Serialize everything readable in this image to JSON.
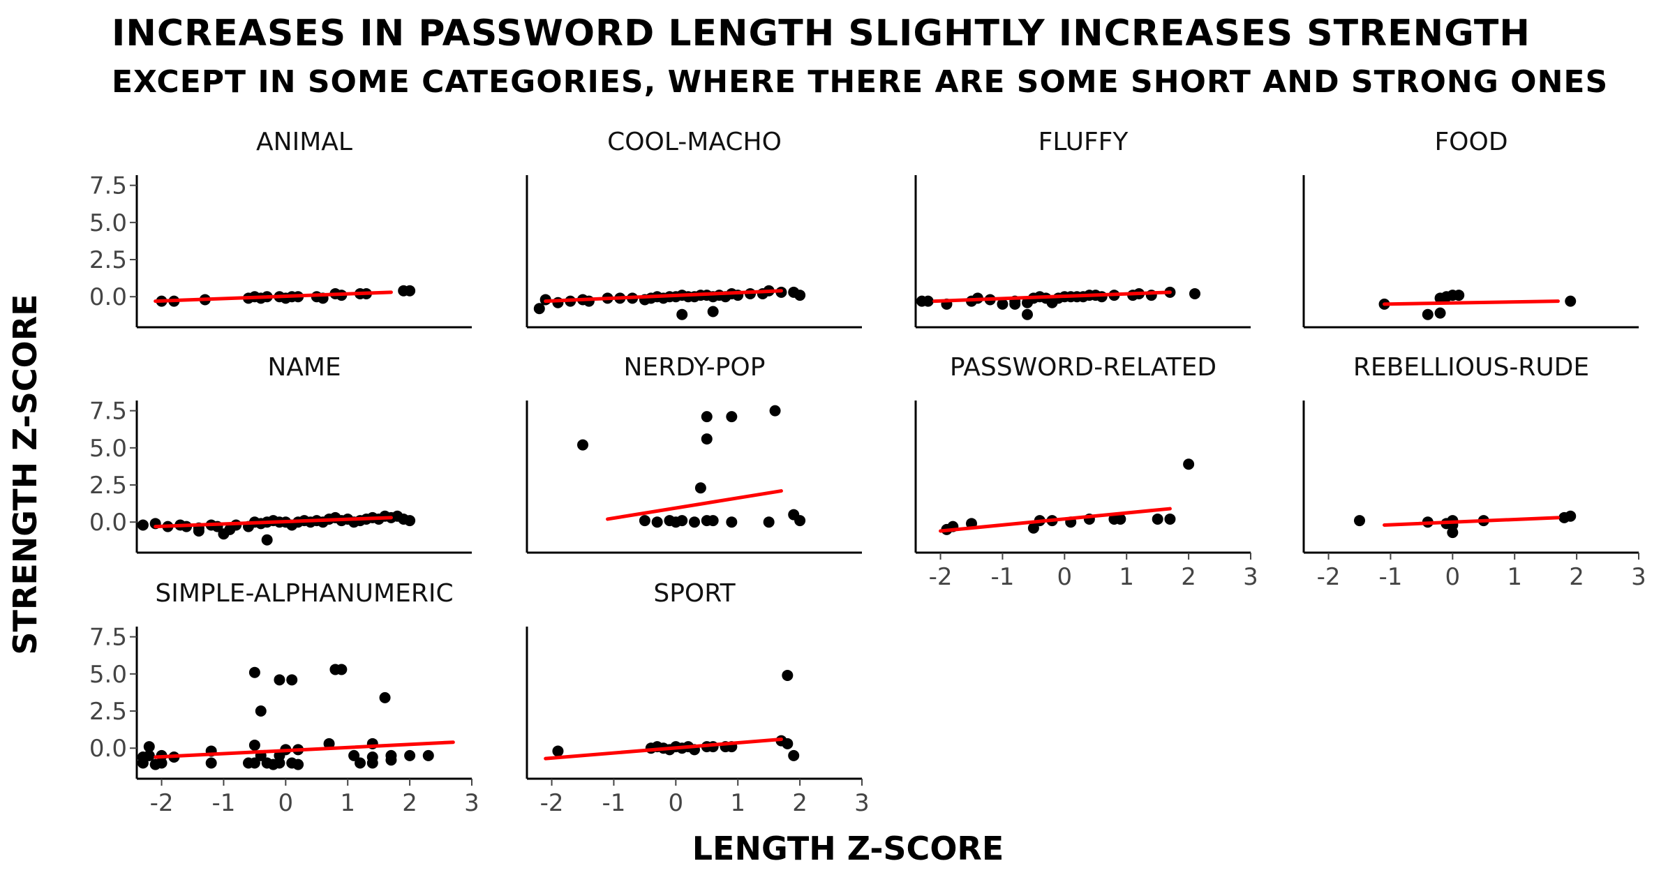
{
  "chart_data": {
    "type": "scatter",
    "title": "INCREASES IN PASSWORD LENGTH SLIGHTLY INCREASES STRENGTH",
    "subtitle": "EXCEPT IN SOME CATEGORIES, WHERE THERE ARE SOME SHORT AND STRONG ONES",
    "xlabel": "LENGTH Z-SCORE",
    "ylabel": "STRENGTH Z-SCORE",
    "xlim": [
      -2.4,
      3.0
    ],
    "ylim": [
      -1.4,
      8.0
    ],
    "x_ticks": [
      "-2",
      "-1",
      "0",
      "1",
      "2",
      "3"
    ],
    "x_tick_values": [
      -2,
      -1,
      0,
      1,
      2,
      3
    ],
    "y_ticks": [
      "0.0",
      "2.5",
      "5.0",
      "7.5"
    ],
    "y_tick_values": [
      0,
      2.5,
      5,
      7.5
    ],
    "point_color": "#000000",
    "fit_color": "#ff0000",
    "panels": [
      {
        "name": "ANIMAL",
        "points": [
          [
            -2.0,
            -0.3
          ],
          [
            -1.8,
            -0.3
          ],
          [
            -1.3,
            -0.2
          ],
          [
            -0.6,
            -0.1
          ],
          [
            -0.5,
            0.0
          ],
          [
            -0.4,
            -0.1
          ],
          [
            -0.3,
            0.0
          ],
          [
            -0.1,
            0.0
          ],
          [
            0.0,
            -0.1
          ],
          [
            0.1,
            0.0
          ],
          [
            0.2,
            0.0
          ],
          [
            0.5,
            0.0
          ],
          [
            0.6,
            -0.1
          ],
          [
            0.8,
            0.2
          ],
          [
            0.9,
            0.1
          ],
          [
            1.2,
            0.2
          ],
          [
            1.3,
            0.2
          ],
          [
            1.9,
            0.4
          ],
          [
            2.0,
            0.4
          ]
        ],
        "fit": [
          [
            -2.1,
            -0.3
          ],
          [
            1.7,
            0.3
          ]
        ]
      },
      {
        "name": "COOL-MACHO",
        "points": [
          [
            -2.2,
            -0.8
          ],
          [
            -2.1,
            -0.2
          ],
          [
            -1.9,
            -0.4
          ],
          [
            -1.7,
            -0.3
          ],
          [
            -1.5,
            -0.2
          ],
          [
            -1.4,
            -0.3
          ],
          [
            -1.1,
            -0.1
          ],
          [
            -0.9,
            -0.1
          ],
          [
            -0.7,
            -0.1
          ],
          [
            -0.5,
            -0.2
          ],
          [
            -0.4,
            -0.1
          ],
          [
            -0.3,
            0.0
          ],
          [
            -0.2,
            -0.1
          ],
          [
            -0.1,
            0.0
          ],
          [
            0.0,
            0.0
          ],
          [
            0.1,
            0.1
          ],
          [
            0.2,
            0.0
          ],
          [
            0.3,
            0.0
          ],
          [
            0.4,
            0.1
          ],
          [
            0.5,
            0.1
          ],
          [
            0.6,
            0.0
          ],
          [
            0.7,
            0.1
          ],
          [
            0.8,
            0.0
          ],
          [
            0.9,
            0.2
          ],
          [
            1.0,
            0.1
          ],
          [
            1.2,
            0.2
          ],
          [
            1.4,
            0.2
          ],
          [
            1.5,
            0.4
          ],
          [
            1.7,
            0.3
          ],
          [
            1.9,
            0.3
          ],
          [
            2.0,
            0.1
          ],
          [
            0.1,
            -1.2
          ],
          [
            0.6,
            -1.0
          ]
        ],
        "fit": [
          [
            -2.1,
            -0.3
          ],
          [
            1.7,
            0.4
          ]
        ]
      },
      {
        "name": "FLUFFY",
        "points": [
          [
            -2.3,
            -0.3
          ],
          [
            -2.2,
            -0.3
          ],
          [
            -1.9,
            -0.5
          ],
          [
            -1.5,
            -0.3
          ],
          [
            -1.4,
            -0.1
          ],
          [
            -1.2,
            -0.2
          ],
          [
            -1.0,
            -0.5
          ],
          [
            -0.8,
            -0.3
          ],
          [
            -0.8,
            -0.5
          ],
          [
            -0.6,
            -0.4
          ],
          [
            -0.5,
            -0.1
          ],
          [
            -0.4,
            0.0
          ],
          [
            -0.3,
            -0.1
          ],
          [
            -0.2,
            -0.4
          ],
          [
            -0.1,
            -0.1
          ],
          [
            0.0,
            0.0
          ],
          [
            0.1,
            0.0
          ],
          [
            0.2,
            0.0
          ],
          [
            0.3,
            0.0
          ],
          [
            0.4,
            0.1
          ],
          [
            0.5,
            0.1
          ],
          [
            0.6,
            0.0
          ],
          [
            0.8,
            0.1
          ],
          [
            1.1,
            0.1
          ],
          [
            1.2,
            0.2
          ],
          [
            1.4,
            0.1
          ],
          [
            1.7,
            0.3
          ],
          [
            2.1,
            0.2
          ],
          [
            -0.6,
            -1.2
          ]
        ],
        "fit": [
          [
            -2.1,
            -0.3
          ],
          [
            1.7,
            0.3
          ]
        ]
      },
      {
        "name": "FOOD",
        "points": [
          [
            -1.1,
            -0.5
          ],
          [
            -0.4,
            -1.2
          ],
          [
            -0.2,
            -1.1
          ],
          [
            -0.2,
            -0.1
          ],
          [
            -0.1,
            0.0
          ],
          [
            0.0,
            0.1
          ],
          [
            0.1,
            0.1
          ],
          [
            1.9,
            -0.3
          ]
        ],
        "fit": [
          [
            -1.1,
            -0.5
          ],
          [
            1.7,
            -0.3
          ]
        ]
      },
      {
        "name": "NAME",
        "points": [
          [
            -2.3,
            -0.2
          ],
          [
            -2.1,
            -0.1
          ],
          [
            -1.9,
            -0.3
          ],
          [
            -1.7,
            -0.2
          ],
          [
            -1.6,
            -0.3
          ],
          [
            -1.4,
            -0.4
          ],
          [
            -1.4,
            -0.6
          ],
          [
            -1.2,
            -0.2
          ],
          [
            -1.1,
            -0.3
          ],
          [
            -1.0,
            -0.8
          ],
          [
            -0.9,
            -0.5
          ],
          [
            -0.8,
            -0.2
          ],
          [
            -0.6,
            -0.3
          ],
          [
            -0.5,
            0.0
          ],
          [
            -0.4,
            -0.1
          ],
          [
            -0.3,
            0.0
          ],
          [
            -0.2,
            0.1
          ],
          [
            -0.1,
            0.0
          ],
          [
            0.0,
            0.0
          ],
          [
            0.1,
            -0.2
          ],
          [
            0.2,
            0.0
          ],
          [
            0.3,
            0.1
          ],
          [
            0.4,
            0.0
          ],
          [
            0.5,
            0.1
          ],
          [
            0.6,
            0.0
          ],
          [
            0.7,
            0.2
          ],
          [
            0.8,
            0.3
          ],
          [
            0.9,
            0.1
          ],
          [
            1.0,
            0.2
          ],
          [
            1.1,
            0.0
          ],
          [
            1.2,
            0.1
          ],
          [
            1.3,
            0.2
          ],
          [
            1.4,
            0.3
          ],
          [
            1.5,
            0.2
          ],
          [
            1.6,
            0.4
          ],
          [
            1.7,
            0.3
          ],
          [
            1.8,
            0.4
          ],
          [
            1.9,
            0.2
          ],
          [
            2.0,
            0.1
          ],
          [
            -0.3,
            -1.2
          ]
        ],
        "fit": [
          [
            -2.1,
            -0.3
          ],
          [
            1.7,
            0.3
          ]
        ]
      },
      {
        "name": "NERDY-POP",
        "points": [
          [
            -1.5,
            5.2
          ],
          [
            -0.5,
            0.1
          ],
          [
            -0.3,
            0.0
          ],
          [
            -0.1,
            0.1
          ],
          [
            0.0,
            0.0
          ],
          [
            0.1,
            0.1
          ],
          [
            0.3,
            0.0
          ],
          [
            0.4,
            2.3
          ],
          [
            0.5,
            0.1
          ],
          [
            0.6,
            0.1
          ],
          [
            0.5,
            5.6
          ],
          [
            0.5,
            7.1
          ],
          [
            0.9,
            7.1
          ],
          [
            0.9,
            0.0
          ],
          [
            1.6,
            7.5
          ],
          [
            1.5,
            0.0
          ],
          [
            1.9,
            0.5
          ],
          [
            2.0,
            0.1
          ]
        ],
        "fit": [
          [
            -1.1,
            0.2
          ],
          [
            1.7,
            2.1
          ]
        ]
      },
      {
        "name": "PASSWORD-RELATED",
        "points": [
          [
            -1.9,
            -0.5
          ],
          [
            -1.8,
            -0.3
          ],
          [
            -1.5,
            -0.1
          ],
          [
            -0.5,
            -0.4
          ],
          [
            -0.4,
            0.1
          ],
          [
            -0.2,
            0.1
          ],
          [
            0.1,
            0.0
          ],
          [
            0.4,
            0.2
          ],
          [
            0.8,
            0.2
          ],
          [
            0.9,
            0.2
          ],
          [
            1.5,
            0.2
          ],
          [
            1.7,
            0.2
          ],
          [
            2.0,
            3.9
          ]
        ],
        "fit": [
          [
            -2.0,
            -0.6
          ],
          [
            1.7,
            0.9
          ]
        ]
      },
      {
        "name": "REBELLIOUS-RUDE",
        "points": [
          [
            -1.5,
            0.1
          ],
          [
            -0.4,
            0.0
          ],
          [
            -0.1,
            -0.1
          ],
          [
            0.0,
            -0.2
          ],
          [
            0.0,
            -0.7
          ],
          [
            0.0,
            0.1
          ],
          [
            0.5,
            0.1
          ],
          [
            1.8,
            0.3
          ],
          [
            1.9,
            0.4
          ]
        ],
        "fit": [
          [
            -1.1,
            -0.2
          ],
          [
            1.7,
            0.3
          ]
        ]
      },
      {
        "name": "SIMPLE-ALPHANUMERIC",
        "points": [
          [
            -2.3,
            -0.6
          ],
          [
            -2.3,
            -1.0
          ],
          [
            -2.2,
            -0.5
          ],
          [
            -2.2,
            0.1
          ],
          [
            -2.1,
            -1.1
          ],
          [
            -2.0,
            -0.5
          ],
          [
            -2.0,
            -1.0
          ],
          [
            -1.8,
            -0.6
          ],
          [
            -1.2,
            -1.0
          ],
          [
            -1.2,
            -0.2
          ],
          [
            -0.6,
            -1.0
          ],
          [
            -0.5,
            5.1
          ],
          [
            -0.5,
            0.2
          ],
          [
            -0.5,
            -1.0
          ],
          [
            -0.4,
            2.5
          ],
          [
            -0.4,
            -0.5
          ],
          [
            -0.3,
            -1.0
          ],
          [
            -0.2,
            -1.1
          ],
          [
            -0.1,
            -0.5
          ],
          [
            -0.1,
            -1.0
          ],
          [
            -0.1,
            4.6
          ],
          [
            0.0,
            -0.1
          ],
          [
            0.1,
            -1.0
          ],
          [
            0.1,
            4.6
          ],
          [
            0.2,
            -0.1
          ],
          [
            0.2,
            -1.1
          ],
          [
            0.7,
            0.3
          ],
          [
            0.8,
            5.3
          ],
          [
            0.9,
            5.3
          ],
          [
            1.1,
            -0.5
          ],
          [
            1.2,
            -1.0
          ],
          [
            1.4,
            0.3
          ],
          [
            1.4,
            -0.6
          ],
          [
            1.4,
            -1.0
          ],
          [
            1.6,
            3.4
          ],
          [
            1.7,
            -0.8
          ],
          [
            1.7,
            -0.5
          ],
          [
            2.0,
            -0.5
          ],
          [
            2.3,
            -0.5
          ]
        ],
        "fit": [
          [
            -2.1,
            -0.6
          ],
          [
            2.7,
            0.4
          ]
        ]
      },
      {
        "name": "SPORT",
        "points": [
          [
            -1.9,
            -0.2
          ],
          [
            -0.4,
            0.0
          ],
          [
            -0.3,
            0.1
          ],
          [
            -0.2,
            0.0
          ],
          [
            -0.1,
            -0.1
          ],
          [
            0.0,
            0.1
          ],
          [
            0.1,
            0.0
          ],
          [
            0.2,
            0.1
          ],
          [
            0.3,
            -0.1
          ],
          [
            0.5,
            0.1
          ],
          [
            0.6,
            0.1
          ],
          [
            0.8,
            0.1
          ],
          [
            0.9,
            0.1
          ],
          [
            1.7,
            0.5
          ],
          [
            1.8,
            0.3
          ],
          [
            1.8,
            4.9
          ],
          [
            1.9,
            -0.5
          ]
        ],
        "fit": [
          [
            -2.1,
            -0.7
          ],
          [
            1.7,
            0.6
          ]
        ]
      }
    ]
  }
}
